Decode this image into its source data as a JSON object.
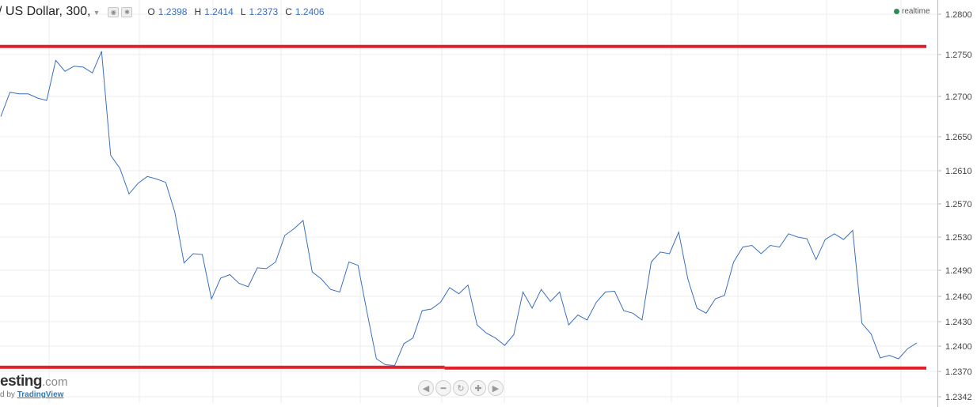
{
  "header": {
    "symbol": "/ US Dollar, 300,",
    "ohlc": [
      {
        "k": "O",
        "v": "1.2398"
      },
      {
        "k": "H",
        "v": "1.2414"
      },
      {
        "k": "L",
        "v": "1.2373"
      },
      {
        "k": "C",
        "v": "1.2406"
      }
    ],
    "realtime": "realtime",
    "realtime_color": "#2e8b57"
  },
  "branding": {
    "logo_main": "esting",
    "logo_suffix": ".com",
    "powered_prefix": "d by",
    "powered_link": "TradingView"
  },
  "nav_icons": [
    "chevron-left-icon",
    "zoom-out-icon",
    "reset-icon",
    "zoom-in-icon",
    "chevron-right-icon"
  ],
  "colors": {
    "line": "#3b6fbf",
    "levels": "#e0202a",
    "grid": "#eeeeee",
    "axis": "#bbbbbb"
  },
  "chart_data": {
    "type": "line",
    "title": "",
    "xlabel": "",
    "ylabel": "",
    "y_ticks": [
      "1.2800",
      "1.2750",
      "1.2700",
      "1.2650",
      "1.2610",
      "1.2570",
      "1.2530",
      "1.2490",
      "1.2460",
      "1.2430",
      "1.2400",
      "1.2370",
      "1.2342"
    ],
    "grid": true,
    "series": [
      {
        "values": [
          1.2675,
          1.2705,
          1.2703,
          1.2703,
          1.2698,
          1.2695,
          1.2743,
          1.273,
          1.2736,
          1.2735,
          1.2728,
          1.2754,
          1.2628,
          1.2613,
          1.2582,
          1.2595,
          1.2603,
          1.26,
          1.2596,
          1.256,
          1.2499,
          1.251,
          1.2509,
          1.2457,
          1.2481,
          1.2485,
          1.2475,
          1.2471,
          1.2493,
          1.2492,
          1.25,
          1.2532,
          1.254,
          1.255,
          1.2488,
          1.248,
          1.2468,
          1.2465,
          1.25,
          1.2496,
          1.244,
          1.2385,
          1.2378,
          1.2377,
          1.2403,
          1.241,
          1.2443,
          1.2445,
          1.2453,
          1.247,
          1.2463,
          1.2473,
          1.2426,
          1.2416,
          1.241,
          1.2401,
          1.2414,
          1.2465,
          1.2446,
          1.2468,
          1.2454,
          1.2465,
          1.2426,
          1.2438,
          1.2432,
          1.2453,
          1.2465,
          1.2466,
          1.2443,
          1.244,
          1.2432,
          1.25,
          1.2512,
          1.251,
          1.2536,
          1.248,
          1.2446,
          1.244,
          1.2457,
          1.2461,
          1.25,
          1.2518,
          1.252,
          1.251,
          1.252,
          1.2518,
          1.2534,
          1.253,
          1.2528,
          1.2503,
          1.2527,
          1.2534,
          1.2527,
          1.2538,
          1.2428,
          1.2415,
          1.2386,
          1.2389,
          1.2385,
          1.2397,
          1.2404
        ]
      }
    ],
    "levels": [
      {
        "value": 1.276,
        "from": 0,
        "to": 1
      },
      {
        "value": 1.2375,
        "from": 0,
        "to": 0.48
      },
      {
        "value": 1.2374,
        "from": 0.48,
        "to": 1
      }
    ]
  }
}
